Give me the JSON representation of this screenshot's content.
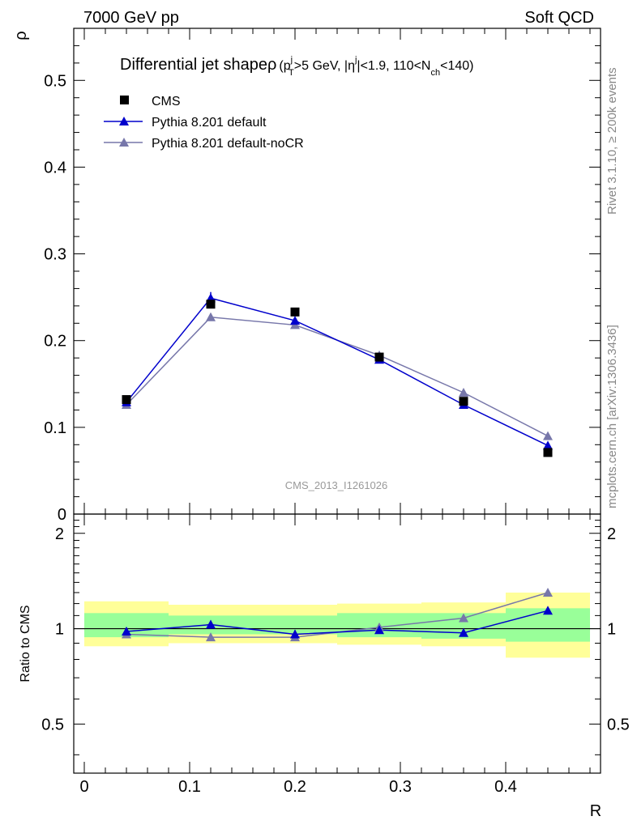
{
  "header": {
    "left": "7000 GeV pp",
    "right": "Soft QCD"
  },
  "side": {
    "rivet": "Rivet 3.1.10, ≥ 200k events",
    "mcplots": "mcplots.cern.ch [arXiv:1306.3436]"
  },
  "chart_data": [
    {
      "type": "scatter",
      "title": "Differential jet shape ρ (p_T^j>5 GeV, |η^j|<1.9, 110<N_ch<140)",
      "title_parts": {
        "main": "Differential jet shape",
        "rho": "ρ",
        "open": "(p",
        "pt_sup": "j",
        "pt_sub": "T",
        "pt_rest": ">5 GeV, |η",
        "eta_sup": "j",
        "eta_rest": "|<1.9, 110<N",
        "nch_sub": "ch",
        "close": "<140)"
      },
      "ylabel": "ρ",
      "watermark": "CMS_2013_I1261026",
      "xlim": [
        -0.01,
        0.49
      ],
      "ylim": [
        0,
        0.56
      ],
      "yticks": [
        {
          "v": 0,
          "label": "0"
        },
        {
          "v": 0.1,
          "label": "0.1"
        },
        {
          "v": 0.2,
          "label": "0.2"
        },
        {
          "v": 0.3,
          "label": "0.3"
        },
        {
          "v": 0.4,
          "label": "0.4"
        },
        {
          "v": 0.5,
          "label": "0.5"
        }
      ],
      "legend_position": "top-left",
      "series": [
        {
          "name": "CMS",
          "marker": "square",
          "color": "#000000",
          "x": [
            0.04,
            0.12,
            0.2,
            0.28,
            0.36,
            0.44
          ],
          "y": [
            0.132,
            0.242,
            0.233,
            0.181,
            0.13,
            0.071
          ]
        },
        {
          "name": "Pythia 8.201 default",
          "marker": "triangle",
          "color": "#0000cc",
          "x": [
            0.04,
            0.12,
            0.2,
            0.28,
            0.36,
            0.44
          ],
          "y": [
            0.129,
            0.249,
            0.223,
            0.178,
            0.126,
            0.079
          ],
          "yerr": [
            0.003,
            0.007,
            0.004,
            0.002,
            0.003,
            0.002
          ]
        },
        {
          "name": "Pythia 8.201 default-noCR",
          "marker": "triangle",
          "color": "#7777aa",
          "x": [
            0.04,
            0.12,
            0.2,
            0.28,
            0.36,
            0.44
          ],
          "y": [
            0.126,
            0.227,
            0.218,
            0.183,
            0.14,
            0.09
          ]
        }
      ]
    },
    {
      "type": "line",
      "ylabel": "Ratio to CMS",
      "xlabel": "R",
      "xlim": [
        -0.01,
        0.49
      ],
      "ylim": [
        0.35,
        2.3
      ],
      "reference": 1,
      "xticks": [
        {
          "v": 0,
          "label": "0"
        },
        {
          "v": 0.1,
          "label": "0.1"
        },
        {
          "v": 0.2,
          "label": "0.2"
        },
        {
          "v": 0.3,
          "label": "0.3"
        },
        {
          "v": 0.4,
          "label": "0.4"
        }
      ],
      "yticks": [
        {
          "v": 0.5,
          "label": "0.5"
        },
        {
          "v": 1,
          "label": "1"
        },
        {
          "v": 2,
          "label": "2"
        }
      ],
      "bands": {
        "bins": [
          [
            0.0,
            0.08
          ],
          [
            0.08,
            0.16
          ],
          [
            0.16,
            0.24
          ],
          [
            0.24,
            0.32
          ],
          [
            0.32,
            0.4
          ],
          [
            0.4,
            0.48
          ]
        ],
        "yellow": [
          [
            0.88,
            1.22
          ],
          [
            0.9,
            1.19
          ],
          [
            0.9,
            1.19
          ],
          [
            0.89,
            1.2
          ],
          [
            0.88,
            1.21
          ],
          [
            0.81,
            1.3
          ]
        ],
        "green": [
          [
            0.94,
            1.12
          ],
          [
            0.96,
            1.1
          ],
          [
            0.96,
            1.1
          ],
          [
            0.94,
            1.12
          ],
          [
            0.93,
            1.12
          ],
          [
            0.91,
            1.16
          ]
        ],
        "yellow_color": "#ffff99",
        "green_color": "#99ff99"
      },
      "series": [
        {
          "name": "Pythia 8.201 default",
          "color": "#0000cc",
          "x": [
            0.04,
            0.12,
            0.2,
            0.28,
            0.36,
            0.44
          ],
          "y": [
            0.98,
            1.03,
            0.96,
            0.99,
            0.97,
            1.14
          ],
          "yerr": [
            0.03,
            0.03,
            0.03,
            0.02,
            0.02,
            0.03
          ]
        },
        {
          "name": "Pythia 8.201 default-noCR",
          "color": "#7777aa",
          "x": [
            0.04,
            0.12,
            0.2,
            0.28,
            0.36,
            0.44
          ],
          "y": [
            0.96,
            0.94,
            0.94,
            1.01,
            1.08,
            1.3
          ]
        }
      ]
    }
  ]
}
